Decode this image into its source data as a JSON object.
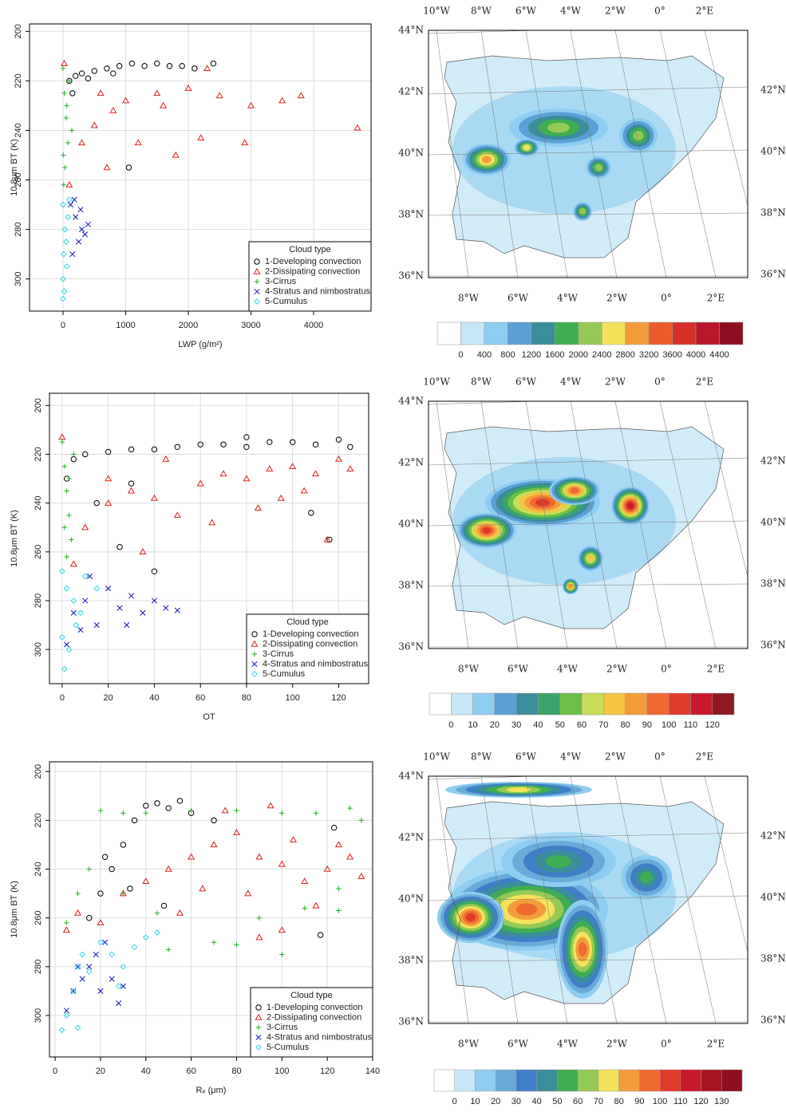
{
  "chart_data": [
    {
      "type": "scatter",
      "xlabel": "LWP (g/m²)",
      "ylabel": "10.8μm BT (K)",
      "xlim": [
        -535,
        4917
      ],
      "ylim": [
        313,
        197
      ],
      "xticks": [
        0,
        1000,
        2000,
        3000,
        4000
      ],
      "yticks": [
        200,
        220,
        240,
        260,
        280,
        300
      ],
      "grid": true,
      "legend_title": "Cloud type",
      "legend_loc": "lower right",
      "series": [
        {
          "name": "1-Developing convection",
          "color": "#000000",
          "marker": "circle",
          "x": [
            100,
            200,
            300,
            500,
            700,
            900,
            1100,
            1300,
            1500,
            1700,
            1900,
            2100,
            2400,
            400,
            800,
            1050,
            150
          ],
          "values": [
            220,
            218,
            217,
            216,
            215,
            214,
            213,
            214,
            213,
            214,
            214,
            215,
            213,
            219,
            217,
            255,
            225
          ]
        },
        {
          "name": "2-Dissipating convection",
          "color": "#e02020",
          "marker": "triangle",
          "x": [
            20,
            100,
            300,
            500,
            800,
            1000,
            1500,
            2000,
            2500,
            3000,
            3500,
            3800,
            4700,
            1200,
            1800,
            2200,
            2900,
            700,
            2300,
            1600,
            600
          ],
          "values": [
            213,
            262,
            245,
            238,
            232,
            228,
            225,
            223,
            226,
            230,
            228,
            226,
            239,
            245,
            250,
            243,
            245,
            255,
            215,
            230,
            225
          ]
        },
        {
          "name": "3-Cirrus",
          "color": "#20b020",
          "marker": "plus",
          "x": [
            0,
            20,
            50,
            80,
            30,
            10,
            100,
            60,
            140,
            5
          ],
          "values": [
            215,
            225,
            235,
            245,
            255,
            262,
            220,
            230,
            240,
            250
          ]
        },
        {
          "name": "4-Stratus and nimbostratus",
          "color": "#1010c0",
          "marker": "x",
          "x": [
            120,
            200,
            300,
            350,
            250,
            150,
            400,
            180,
            280
          ],
          "values": [
            270,
            275,
            280,
            282,
            285,
            290,
            278,
            268,
            272
          ]
        },
        {
          "name": "5-Cumulus",
          "color": "#30d8e8",
          "marker": "diamond",
          "x": [
            0,
            30,
            80,
            10,
            50,
            0,
            20,
            0,
            100,
            60
          ],
          "values": [
            270,
            280,
            275,
            290,
            285,
            300,
            305,
            308,
            268,
            295
          ]
        }
      ]
    },
    {
      "type": "map",
      "lon_top": [
        "10°W",
        "8°W",
        "6°W",
        "4°W",
        "2°W",
        "0°",
        "2°E"
      ],
      "lat_left": [
        "44°N",
        "42°N",
        "40°N",
        "38°N",
        "36°N"
      ],
      "lat_right": [
        "42°N",
        "40°N",
        "38°N",
        "36°N"
      ],
      "lon_bottom": [
        "8°W",
        "6°W",
        "4°W",
        "2°W",
        "0°",
        "2°E"
      ],
      "colorbar_ticks": [
        0,
        400,
        800,
        1200,
        1600,
        2000,
        2400,
        2800,
        3200,
        3600,
        4000,
        4400
      ],
      "colorbar_colors": [
        "#ffffff",
        "#c6e7f7",
        "#8fcdf0",
        "#5b9fd6",
        "#3a8d9a",
        "#3fae52",
        "#95c955",
        "#f4e35a",
        "#f39c3c",
        "#eb5c2a",
        "#d7302a",
        "#b8172b",
        "#8c1020"
      ]
    },
    {
      "type": "scatter",
      "xlabel": "OT",
      "ylabel": "10.8μm BT (K)",
      "xlim": [
        -5.5,
        133
      ],
      "ylim": [
        314,
        195
      ],
      "xticks": [
        0,
        20,
        40,
        60,
        80,
        100,
        120
      ],
      "yticks": [
        200,
        220,
        240,
        260,
        280,
        300
      ],
      "grid": true,
      "legend_title": "Cloud type",
      "legend_loc": "lower right",
      "series": [
        {
          "name": "1-Developing convection",
          "color": "#000000",
          "marker": "circle",
          "x": [
            2,
            5,
            10,
            20,
            30,
            40,
            50,
            60,
            70,
            80,
            90,
            100,
            110,
            120,
            125,
            108,
            40,
            25,
            15,
            30,
            80,
            116
          ],
          "values": [
            230,
            222,
            220,
            219,
            218,
            218,
            217,
            216,
            216,
            217,
            215,
            215,
            216,
            214,
            217,
            244,
            268,
            258,
            240,
            232,
            213,
            255
          ]
        },
        {
          "name": "2-Dissipating convection",
          "color": "#e02020",
          "marker": "triangle",
          "x": [
            0,
            5,
            10,
            20,
            30,
            40,
            50,
            60,
            70,
            80,
            90,
            100,
            110,
            120,
            35,
            65,
            115,
            95,
            45,
            20,
            85,
            105,
            125
          ],
          "values": [
            213,
            265,
            250,
            240,
            235,
            238,
            245,
            232,
            228,
            230,
            226,
            225,
            228,
            222,
            260,
            248,
            255,
            238,
            222,
            230,
            242,
            235,
            226
          ]
        },
        {
          "name": "3-Cirrus",
          "color": "#20b020",
          "marker": "plus",
          "x": [
            0,
            1,
            2,
            3,
            4,
            2,
            5,
            1,
            3
          ],
          "values": [
            215,
            225,
            235,
            245,
            255,
            262,
            220,
            250,
            230
          ]
        },
        {
          "name": "4-Stratus and nimbostratus",
          "color": "#1010c0",
          "marker": "x",
          "x": [
            2,
            5,
            10,
            15,
            20,
            25,
            30,
            35,
            40,
            45,
            50,
            12,
            28,
            8
          ],
          "values": [
            298,
            285,
            280,
            290,
            275,
            283,
            278,
            285,
            280,
            283,
            284,
            270,
            290,
            292
          ]
        },
        {
          "name": "5-Cumulus",
          "color": "#30d8e8",
          "marker": "diamond",
          "x": [
            0,
            2,
            5,
            8,
            0,
            3,
            1,
            10,
            15,
            6
          ],
          "values": [
            268,
            275,
            280,
            285,
            295,
            300,
            308,
            270,
            275,
            290
          ]
        }
      ]
    },
    {
      "type": "map",
      "lon_top": [
        "10°W",
        "8°W",
        "6°W",
        "4°W",
        "2°W",
        "0°",
        "2°E"
      ],
      "lat_left": [
        "44°N",
        "42°N",
        "40°N",
        "38°N",
        "36°N"
      ],
      "lat_right": [
        "42°N",
        "40°N",
        "38°N",
        "36°N"
      ],
      "lon_bottom": [
        "8°W",
        "6°W",
        "4°W",
        "2°W",
        "0°",
        "2°E"
      ],
      "colorbar_ticks": [
        0,
        10,
        20,
        30,
        40,
        50,
        60,
        70,
        80,
        90,
        100,
        110,
        120
      ],
      "colorbar_colors": [
        "#ffffff",
        "#c6e7f7",
        "#8fcdf0",
        "#5b9fd6",
        "#3a8d9a",
        "#3aa36b",
        "#6cbf45",
        "#c9dd5a",
        "#f5c342",
        "#f39b3b",
        "#ee6a2f",
        "#e03a2a",
        "#c8192b",
        "#8e1b1f"
      ]
    },
    {
      "type": "scatter",
      "xlabel": "Rₑ (μm)",
      "ylabel": "10.8μm BT (K)",
      "xlim": [
        -2.5,
        140
      ],
      "ylim": [
        317,
        196
      ],
      "xticks": [
        0,
        20,
        40,
        60,
        80,
        100,
        120,
        140
      ],
      "yticks": [
        200,
        220,
        240,
        260,
        280,
        300
      ],
      "grid": true,
      "legend_title": "Cloud type",
      "legend_loc": "lower right",
      "series": [
        {
          "name": "1-Developing convection",
          "color": "#000000",
          "marker": "circle",
          "x": [
            20,
            25,
            30,
            35,
            40,
            45,
            50,
            55,
            60,
            70,
            15,
            22,
            117,
            123,
            48,
            33
          ],
          "values": [
            250,
            240,
            230,
            220,
            214,
            213,
            215,
            212,
            217,
            220,
            260,
            235,
            267,
            223,
            255,
            248
          ]
        },
        {
          "name": "2-Dissipating convection",
          "color": "#e02020",
          "marker": "triangle",
          "x": [
            5,
            10,
            20,
            30,
            40,
            50,
            60,
            70,
            80,
            90,
            100,
            110,
            120,
            130,
            135,
            95,
            75,
            105,
            85,
            65,
            55,
            115,
            125,
            90,
            100
          ],
          "values": [
            265,
            258,
            262,
            250,
            245,
            240,
            235,
            230,
            225,
            235,
            238,
            245,
            240,
            235,
            243,
            214,
            216,
            228,
            250,
            248,
            258,
            255,
            230,
            268,
            265
          ]
        },
        {
          "name": "3-Cirrus",
          "color": "#20b020",
          "marker": "plus",
          "x": [
            5,
            10,
            15,
            20,
            30,
            40,
            60,
            80,
            100,
            115,
            130,
            135,
            125,
            110,
            90,
            70,
            50,
            100,
            80,
            30,
            45,
            125
          ],
          "values": [
            262,
            250,
            240,
            216,
            217,
            217,
            216,
            216,
            217,
            217,
            215,
            220,
            248,
            256,
            260,
            270,
            273,
            275,
            271,
            250,
            258,
            257
          ]
        },
        {
          "name": "4-Stratus and nimbostratus",
          "color": "#1010c0",
          "marker": "x",
          "x": [
            5,
            8,
            12,
            15,
            20,
            25,
            28,
            30,
            18,
            10,
            22
          ],
          "values": [
            298,
            290,
            285,
            280,
            290,
            285,
            295,
            288,
            275,
            280,
            270
          ]
        },
        {
          "name": "5-Cumulus",
          "color": "#30d8e8",
          "marker": "diamond",
          "x": [
            5,
            8,
            10,
            12,
            15,
            20,
            25,
            30,
            35,
            40,
            45,
            3,
            10,
            28
          ],
          "values": [
            300,
            290,
            280,
            275,
            282,
            270,
            275,
            280,
            272,
            268,
            266,
            306,
            305,
            288
          ]
        }
      ]
    },
    {
      "type": "map",
      "lon_top": [
        "10°W",
        "8°W",
        "6°W",
        "4°W",
        "2°W",
        "0°",
        "2°E"
      ],
      "lat_left": [
        "44°N",
        "42°N",
        "40°N",
        "38°N",
        "36°N"
      ],
      "lat_right": [
        "42°N",
        "40°N",
        "38°N",
        "36°N"
      ],
      "lon_bottom": [
        "8°W",
        "6°W",
        "4°W",
        "2°W",
        "0°",
        "2°E"
      ],
      "colorbar_ticks": [
        0,
        10,
        20,
        30,
        40,
        50,
        60,
        70,
        80,
        90,
        100,
        110,
        120,
        130
      ],
      "colorbar_colors": [
        "#ffffff",
        "#c6e7f7",
        "#8fcdf0",
        "#6aaad9",
        "#3f7fc7",
        "#3a8d9a",
        "#3fae52",
        "#95c955",
        "#f4e35a",
        "#f39c3c",
        "#ee6a2f",
        "#e03a2a",
        "#c8192b",
        "#a8171f",
        "#8c1020"
      ]
    }
  ]
}
